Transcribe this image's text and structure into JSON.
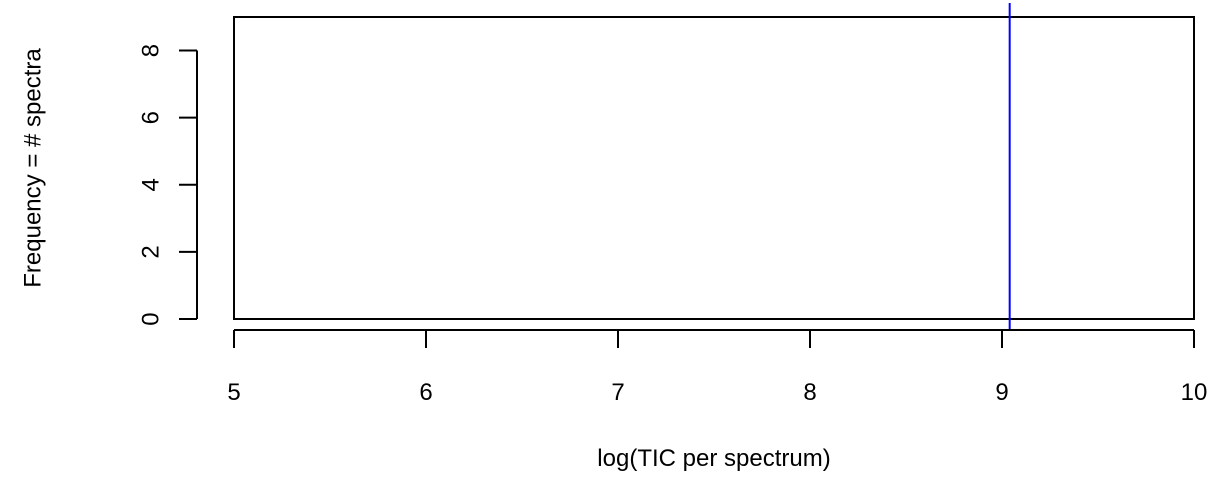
{
  "chart_data": {
    "type": "bar",
    "title": "",
    "xlabel": "log(TIC per spectrum)",
    "ylabel": "Frequency = # spectra",
    "xlim": [
      5,
      10
    ],
    "ylim": [
      0,
      9
    ],
    "x_ticks": [
      5,
      6,
      7,
      8,
      9,
      10
    ],
    "y_ticks": [
      0,
      2,
      4,
      6,
      8
    ],
    "bars": [
      {
        "x0": 5,
        "x1": 10,
        "value": 9
      }
    ],
    "vline": {
      "x": 9.04,
      "color": "#0000ff"
    },
    "grid": false,
    "legend": "none"
  },
  "colors": {
    "axis": "#000000",
    "bar_outline": "#000000",
    "vline": "#0000ff"
  }
}
